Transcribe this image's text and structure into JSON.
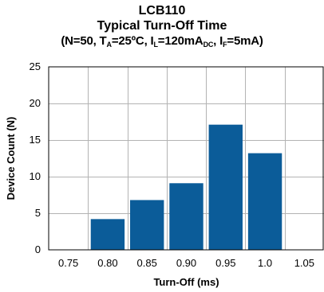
{
  "chart_data": {
    "type": "bar",
    "title": "LCB110",
    "subtitle": "Typical Turn-Off Time",
    "conditions": {
      "prefix": "(N=50, T",
      "ta_sub": "A",
      "ta_val": "=25ºC, I",
      "il_sub": "L",
      "il_val": "=120mA",
      "dc_sub": "DC",
      "mid": ", I",
      "if_sub": "F",
      "if_val": "=5mA)"
    },
    "xlabel": "Turn-Off (ms)",
    "ylabel": "Device Count (N)",
    "categories": [
      "0.75",
      "0.80",
      "0.85",
      "0.90",
      "0.95",
      "1.0",
      "1.05"
    ],
    "values": [
      0,
      4.2,
      6.8,
      9.1,
      17.1,
      13.2,
      0
    ],
    "ylim": [
      0,
      25
    ],
    "yticks": [
      0,
      5,
      10,
      15,
      20,
      25
    ],
    "grid": true,
    "bar_color": "#0b5c99",
    "grid_color": "#b3b3b3"
  }
}
